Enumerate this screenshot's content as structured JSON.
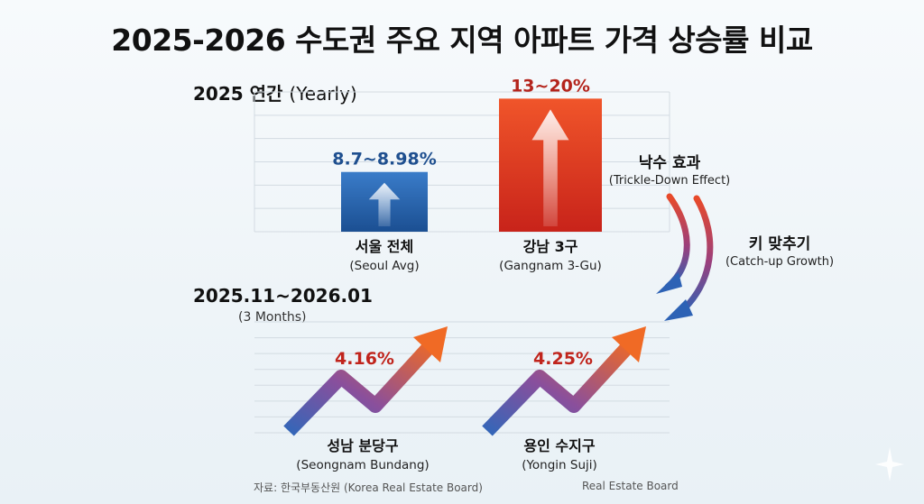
{
  "title": "2025-2026 수도권 주요 지역 아파트 가격 상승률 비교",
  "chart_data": [
    {
      "type": "bar",
      "section_label": "2025 연간",
      "section_label_en": "(Yearly)",
      "categories": [
        {
          "ko": "서울 전체",
          "en": "(Seoul Avg)"
        },
        {
          "ko": "강남 3구",
          "en": "(Gangnam 3-Gu)"
        }
      ],
      "values_range": [
        [
          8.7,
          8.98
        ],
        [
          13,
          20
        ]
      ],
      "data_labels": [
        "8.7~8.98%",
        "13~20%"
      ],
      "ylim": [
        0,
        21
      ],
      "grid": true
    },
    {
      "type": "line",
      "section_label": "2025.11~2026.01",
      "section_sub": "(3 Months)",
      "categories": [
        {
          "ko": "성남 분당구",
          "en": "(Seongnam Bundang)"
        },
        {
          "ko": "용인 수지구",
          "en": "(Yongin Suji)"
        }
      ],
      "values": [
        4.16,
        4.25
      ],
      "data_labels": [
        "4.16%",
        "4.25%"
      ],
      "grid": true
    }
  ],
  "annotations": [
    {
      "ko": "낙수 효과",
      "en": "(Trickle-Down Effect)"
    },
    {
      "ko": "키 맞추기",
      "en": "(Catch-up Growth)"
    }
  ],
  "source_left": "자료: 한국부동산원 (Korea Real Estate Board)",
  "source_right": "Real Estate Board",
  "colors": {
    "seoul_bar": "#1f5fa8",
    "gangnam_bar": "#e0371f",
    "seoul_label": "#1e4f8f",
    "gangnam_label": "#b4241c",
    "trend_label": "#c0241c"
  }
}
